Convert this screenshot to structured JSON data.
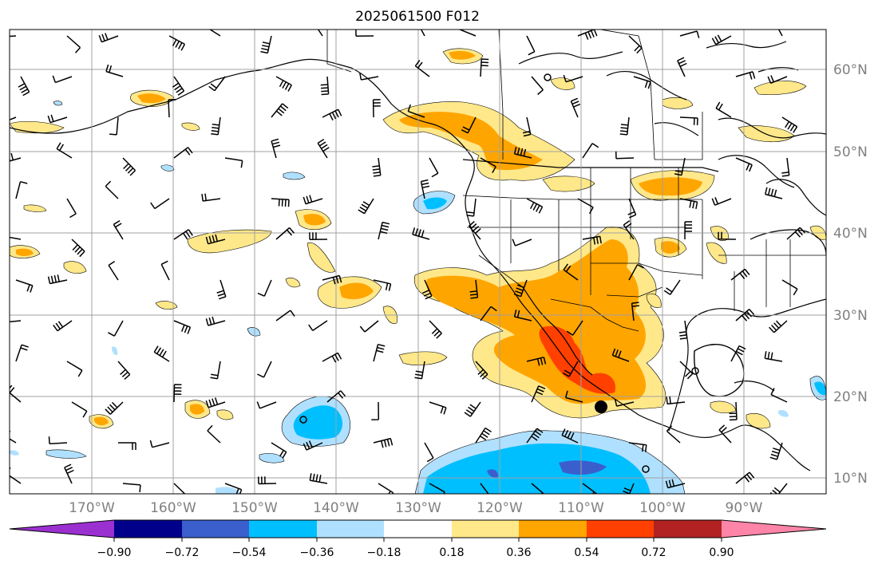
{
  "title": "2025061500 F012",
  "map": {
    "lon_range": [
      -180,
      -80
    ],
    "lat_range": [
      8,
      65
    ],
    "gridlines": true,
    "lon_labels": [
      "170°W",
      "160°W",
      "150°W",
      "140°W",
      "130°W",
      "120°W",
      "110°W",
      "100°W",
      "90°W"
    ],
    "lat_labels": [
      "60°N",
      "50°N",
      "40°N",
      "30°N",
      "20°N",
      "10°N"
    ],
    "wind_barbs": true,
    "contour_field": "filled anomaly"
  },
  "colorbar": {
    "ticks": [
      "−0.90",
      "−0.72",
      "−0.54",
      "−0.36",
      "−0.18",
      "0.18",
      "0.36",
      "0.54",
      "0.72",
      "0.90"
    ],
    "colors": [
      "#9b30d0",
      "#00008b",
      "#3a5fcd",
      "#00bfff",
      "#b0e0ff",
      "#ffffff",
      "#ffe88a",
      "#ffa500",
      "#ff4000",
      "#b22222",
      "#ff85a8"
    ],
    "extend": "both"
  }
}
